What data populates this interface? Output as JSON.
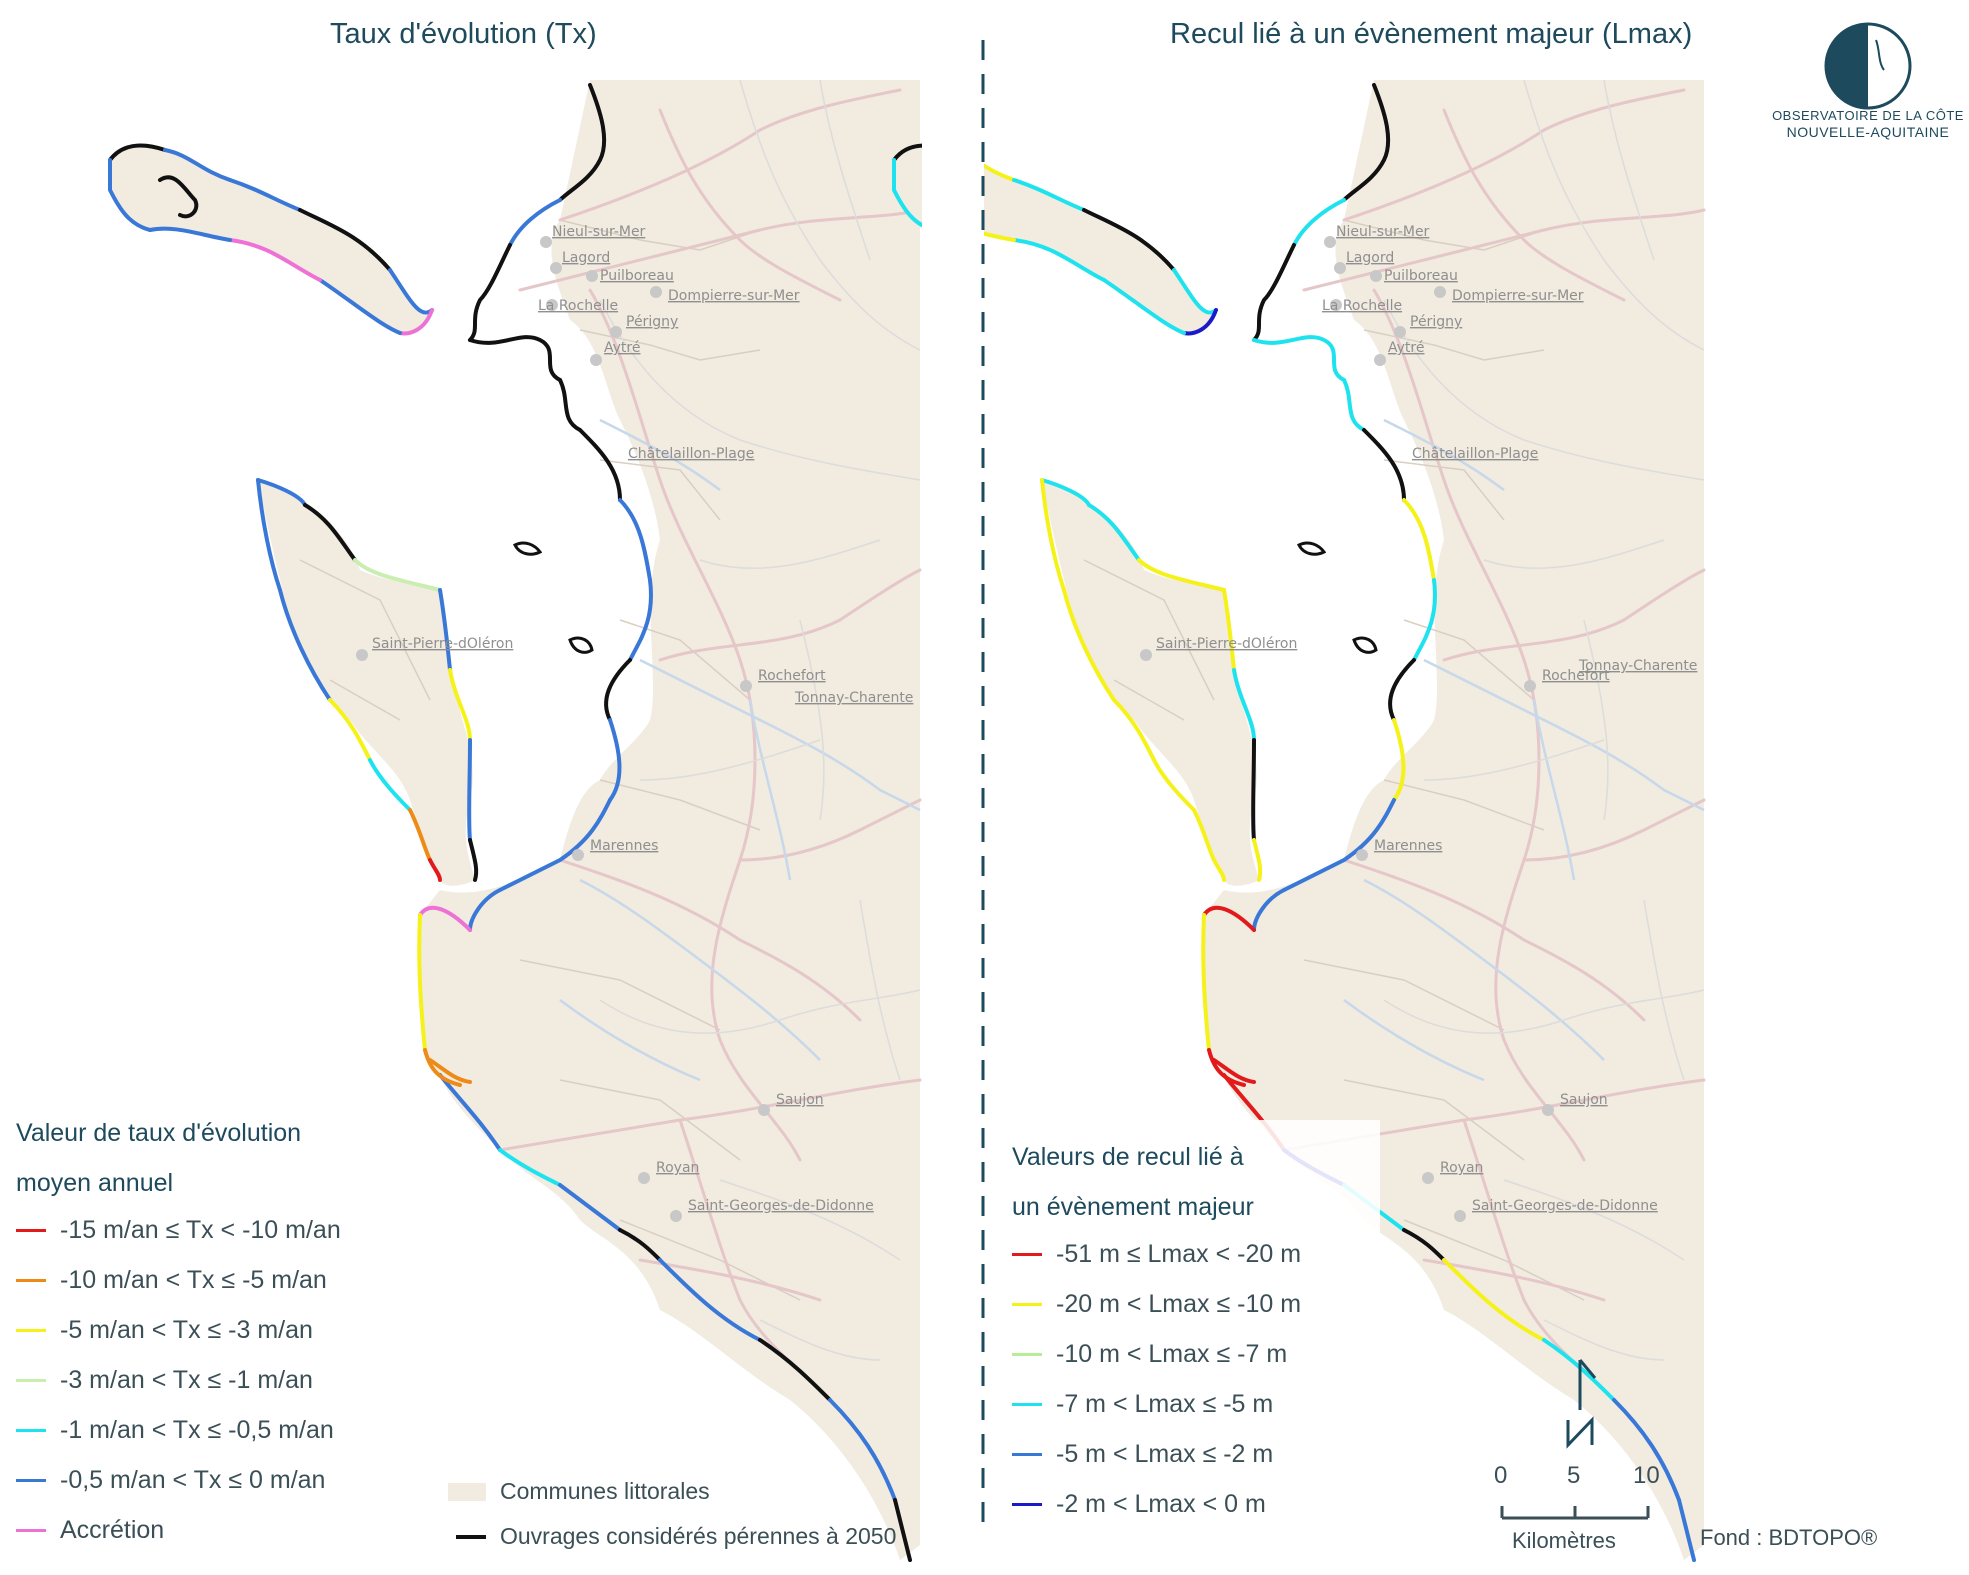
{
  "titles": {
    "left": "Taux d'évolution (Tx)",
    "right": "Recul lié à un évènement majeur (Lmax)"
  },
  "logo": {
    "line1": "OBSERVATOIRE DE LA CÔTE",
    "line2": "NOUVELLE-AQUITAINE",
    "color": "#1d4a5c"
  },
  "towns": {
    "nieul": "Nieul-sur-Mer",
    "lagord": "Lagord",
    "puilboreau": "Puilboreau",
    "dompierre": "Dompierre-sur-Mer",
    "larochelle": "La Rochelle",
    "perigny": "Périgny",
    "aytre": "Aytré",
    "chatelaillon": "Châtelaillon-Plage",
    "stpierre": "Saint-Pierre-dOléron",
    "rochefort": "Rochefort",
    "tonnay": "Tonnay-Charente",
    "marennes": "Marennes",
    "saujon": "Saujon",
    "royan": "Royan",
    "stgeorges": "Saint-Georges-de-Didonne"
  },
  "legend_tx": {
    "title_line1": "Valeur de taux d'évolution",
    "title_line2": "moyen annuel",
    "items": [
      {
        "label": "-15 m/an ≤ Tx < -10 m/an",
        "color": "#e31a1c"
      },
      {
        "label": "-10 m/an < Tx ≤ -5 m/an",
        "color": "#ee8b17"
      },
      {
        "label": "-5 m/an < Tx ≤ -3 m/an",
        "color": "#f5f21a"
      },
      {
        "label": "-3 m/an < Tx ≤ -1 m/an",
        "color": "#c9eeb0"
      },
      {
        "label": "-1 m/an < Tx ≤ -0,5 m/an",
        "color": "#1ee3ef"
      },
      {
        "label": "-0,5 m/an < Tx ≤ 0 m/an",
        "color": "#3a78d8"
      },
      {
        "label": "Accrétion",
        "color": "#ee72d6"
      }
    ]
  },
  "legend_lmax": {
    "title_line1": "Valeurs de recul lié à",
    "title_line2": "un évènement majeur",
    "items": [
      {
        "label": "-51 m ≤ Lmax < -20 m",
        "color": "#e31a1c"
      },
      {
        "label": "-20 m < Lmax ≤ -10 m",
        "color": "#f5f21a"
      },
      {
        "label": "-10 m < Lmax ≤ -7 m",
        "color": "#b7ec98"
      },
      {
        "label": "-7 m < Lmax ≤ -5 m",
        "color": "#1ee3ef"
      },
      {
        "label": "-5 m < Lmax ≤ -2 m",
        "color": "#3a78d8"
      },
      {
        "label": "-2 m < Lmax < 0 m",
        "color": "#1a1ac8"
      }
    ]
  },
  "base_legend": {
    "communes": "Communes littorales",
    "ouvrages": "Ouvrages considérés pérennes à 2050"
  },
  "scale": {
    "ticks": [
      "0",
      "5",
      "10"
    ],
    "unit": "Kilomètres"
  },
  "credit": "Fond : BDTOPO®"
}
